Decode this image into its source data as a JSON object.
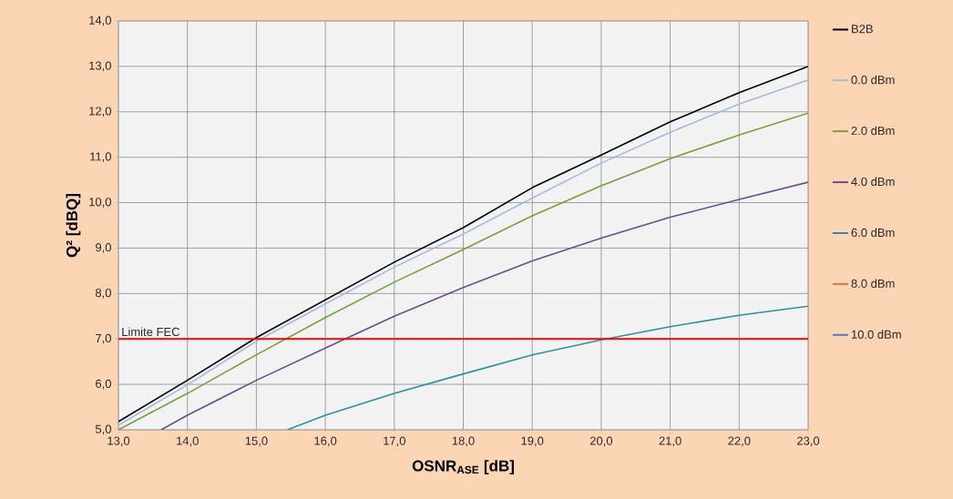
{
  "chart_data": {
    "type": "line",
    "xlabel": "OSNR$_{ASE}$ [dB]",
    "ylabel": "Q² [dBQ]",
    "x": [
      13,
      14,
      15,
      16,
      17,
      18,
      19,
      20,
      21,
      22,
      23
    ],
    "series": [
      {
        "name": "B2B",
        "color": "#000000",
        "values": [
          5.18,
          6.09,
          7.03,
          7.86,
          8.69,
          9.45,
          10.33,
          11.05,
          11.78,
          12.42,
          13.0
        ]
      },
      {
        "name": "0.0 dBm",
        "color": "#a3bbdc",
        "values": [
          5.1,
          5.99,
          6.95,
          7.77,
          8.58,
          9.31,
          10.1,
          10.87,
          11.55,
          12.17,
          12.7
        ]
      },
      {
        "name": "2.0 dBm",
        "color": "#77a03d",
        "values": [
          5.0,
          5.8,
          6.65,
          7.47,
          8.25,
          8.97,
          9.71,
          10.37,
          10.97,
          11.49,
          11.97
        ]
      },
      {
        "name": "4.0 dBm",
        "color": "#6a4f8c",
        "x": [
          13.62,
          14,
          15,
          16,
          17,
          18,
          19,
          20,
          21,
          22,
          23
        ],
        "values": [
          5.0,
          5.32,
          6.09,
          6.8,
          7.5,
          8.13,
          8.72,
          9.22,
          9.68,
          10.07,
          10.45
        ]
      },
      {
        "name": "6.0 dBm",
        "color": "#2e8fa3",
        "x": [
          15.45,
          16,
          17,
          18,
          19,
          20,
          21,
          22,
          23
        ],
        "values": [
          5.0,
          5.32,
          5.8,
          6.23,
          6.65,
          6.98,
          7.27,
          7.52,
          7.72
        ]
      },
      {
        "name": "8.0 dBm",
        "color": "#d9793a",
        "values": [
          null,
          null,
          null,
          null,
          null,
          null,
          null,
          null,
          null,
          null,
          null
        ]
      },
      {
        "name": "10.0 dBm",
        "color": "#4a7ebf",
        "values": [
          null,
          null,
          null,
          null,
          null,
          null,
          null,
          null,
          null,
          null,
          null
        ]
      }
    ],
    "xlim": [
      13,
      23
    ],
    "ylim": [
      5,
      14
    ],
    "xticks": [
      {
        "value": 13,
        "label": "13,0"
      },
      {
        "value": 14,
        "label": "14,0"
      },
      {
        "value": 15,
        "label": "15,0"
      },
      {
        "value": 16,
        "label": "16,0"
      },
      {
        "value": 17,
        "label": "17,0"
      },
      {
        "value": 18,
        "label": "18,0"
      },
      {
        "value": 19,
        "label": "19,0"
      },
      {
        "value": 20,
        "label": "20,0"
      },
      {
        "value": 21,
        "label": "21,0"
      },
      {
        "value": 22,
        "label": "22,0"
      },
      {
        "value": 23,
        "label": "23,0"
      }
    ],
    "yticks": [
      {
        "value": 5,
        "label": "5,0"
      },
      {
        "value": 6,
        "label": "6,0"
      },
      {
        "value": 7,
        "label": "7,0"
      },
      {
        "value": 8,
        "label": "8,0"
      },
      {
        "value": 9,
        "label": "9,0"
      },
      {
        "value": 10,
        "label": "10,0"
      },
      {
        "value": 11,
        "label": "11,0"
      },
      {
        "value": 12,
        "label": "12,0"
      },
      {
        "value": 13,
        "label": "13,0"
      },
      {
        "value": 14,
        "label": "14,0"
      }
    ],
    "ref_lines": [
      {
        "axis": "y",
        "value": 7,
        "label": "Limite FEC",
        "color": "#ff0000"
      }
    ],
    "grid": true,
    "legend": "right",
    "marker": "none",
    "line_style": "solid"
  }
}
